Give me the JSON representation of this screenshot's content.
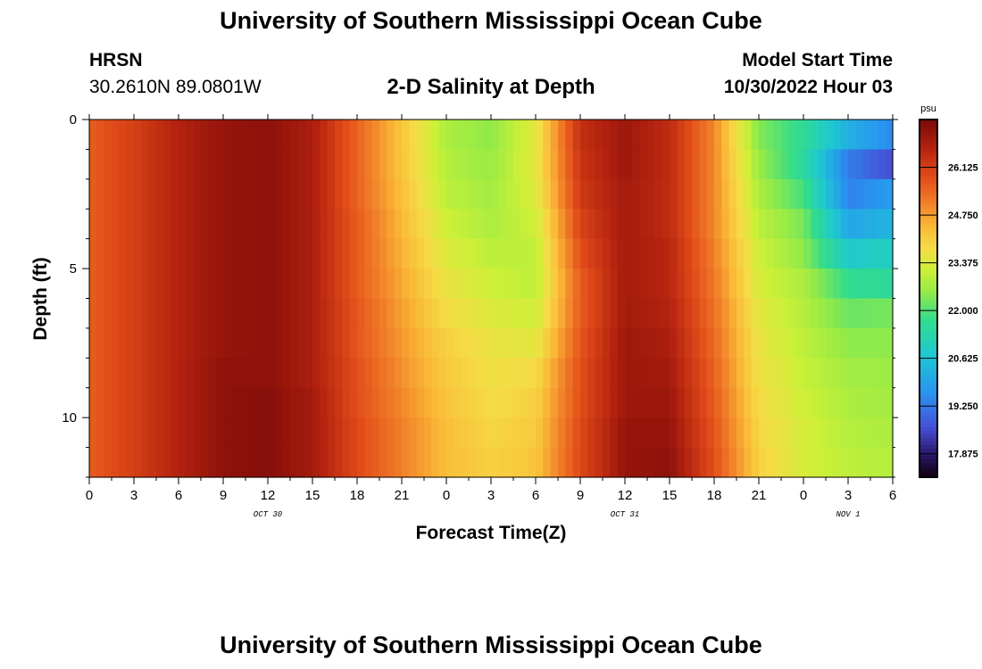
{
  "header": {
    "title": "University of Southern Mississippi Ocean Cube",
    "station": "HRSN",
    "coords": "30.2610N  89.0801W",
    "subtitle": "2-D Salinity at Depth",
    "model_start_label": "Model Start Time",
    "model_start_value": "10/30/2022 Hour 03"
  },
  "footer": {
    "title": "University of Southern Mississippi Ocean Cube"
  },
  "colorbar": {
    "unit": "psu",
    "ticks": [
      "26.125",
      "24.750",
      "23.375",
      "22.000",
      "20.625",
      "19.250",
      "17.875"
    ],
    "min": 17.2,
    "max": 27.5
  },
  "chart_data": {
    "type": "heatmap",
    "title": "2-D Salinity at Depth",
    "xlabel": "Forecast Time(Z)",
    "ylabel": "Depth (ft)",
    "x_tick_labels": [
      "0",
      "3",
      "6",
      "9",
      "12",
      "15",
      "18",
      "21",
      "0",
      "3",
      "6",
      "9",
      "12",
      "15",
      "18",
      "21",
      "0",
      "3",
      "6"
    ],
    "date_labels": [
      {
        "label": "OCT 30",
        "hour": 12
      },
      {
        "label": "OCT 31",
        "hour": 36
      },
      {
        "label": "NOV 1",
        "hour": 51
      }
    ],
    "y_tick_labels": [
      "0",
      "5",
      "10"
    ],
    "x_range_hours": [
      0,
      54
    ],
    "y_range_ft": [
      0,
      12
    ],
    "value_units": "psu",
    "depth_ft": [
      0.5,
      1.5,
      2.5,
      3.5,
      4.5,
      5.5,
      6.5,
      7.5,
      8.5,
      9.5,
      10.5,
      11.5
    ],
    "forecast_hours": [
      0,
      3,
      6,
      9,
      12,
      15,
      18,
      21,
      24,
      27,
      30,
      33,
      36,
      39,
      42,
      45,
      48,
      51,
      54
    ],
    "salinity_profiles": [
      [
        25.6,
        25.6,
        25.6,
        25.6,
        25.6,
        25.6,
        25.6,
        25.6,
        25.6,
        25.6,
        25.6,
        25.6
      ],
      [
        26.1,
        26.1,
        26.1,
        26.1,
        26.1,
        26.1,
        26.1,
        26.1,
        26.1,
        26.1,
        26.1,
        26.1
      ],
      [
        26.7,
        26.7,
        26.7,
        26.7,
        26.7,
        26.7,
        26.7,
        26.7,
        26.7,
        26.7,
        26.7,
        26.7
      ],
      [
        27.1,
        27.1,
        27.1,
        27.1,
        27.1,
        27.1,
        27.1,
        27.1,
        27.2,
        27.2,
        27.2,
        27.2
      ],
      [
        27.2,
        27.2,
        27.2,
        27.2,
        27.2,
        27.2,
        27.2,
        27.2,
        27.2,
        27.3,
        27.3,
        27.3
      ],
      [
        26.8,
        26.8,
        26.8,
        26.8,
        26.8,
        26.8,
        26.8,
        26.8,
        26.8,
        26.9,
        26.9,
        26.9
      ],
      [
        25.5,
        25.5,
        25.5,
        25.6,
        25.6,
        25.6,
        25.7,
        25.7,
        25.8,
        25.8,
        25.9,
        25.9
      ],
      [
        24.2,
        24.2,
        24.3,
        24.4,
        24.5,
        24.6,
        24.7,
        24.8,
        24.9,
        25.0,
        25.1,
        25.1
      ],
      [
        22.8,
        22.9,
        23.0,
        23.2,
        23.4,
        23.6,
        23.8,
        24.0,
        24.1,
        24.2,
        24.3,
        24.3
      ],
      [
        22.5,
        22.6,
        22.7,
        22.8,
        23.0,
        23.2,
        23.4,
        23.6,
        23.7,
        23.8,
        23.9,
        24.0
      ],
      [
        23.5,
        23.5,
        23.4,
        23.2,
        23.0,
        23.0,
        23.2,
        23.5,
        23.8,
        24.0,
        24.1,
        24.2
      ],
      [
        26.4,
        26.3,
        26.2,
        26.0,
        25.8,
        25.6,
        25.6,
        25.7,
        25.8,
        25.8,
        25.9,
        25.9
      ],
      [
        27.0,
        27.0,
        26.9,
        26.9,
        26.9,
        26.9,
        26.9,
        27.0,
        27.0,
        27.0,
        27.1,
        27.1
      ],
      [
        26.5,
        26.5,
        26.5,
        26.5,
        26.6,
        26.6,
        26.7,
        26.8,
        26.9,
        27.0,
        27.1,
        27.2
      ],
      [
        25.0,
        25.0,
        25.0,
        25.0,
        25.1,
        25.2,
        25.3,
        25.4,
        25.5,
        25.6,
        25.7,
        25.8
      ],
      [
        22.4,
        22.6,
        22.8,
        23.0,
        23.2,
        23.3,
        23.5,
        23.6,
        23.7,
        23.8,
        23.9,
        24.0
      ],
      [
        21.6,
        21.5,
        21.9,
        22.3,
        22.5,
        22.8,
        22.9,
        23.0,
        23.1,
        23.2,
        23.3,
        23.3
      ],
      [
        20.2,
        19.3,
        19.4,
        20.0,
        20.8,
        21.7,
        22.2,
        22.5,
        22.7,
        22.8,
        22.9,
        23.0
      ],
      [
        19.5,
        18.6,
        19.8,
        20.3,
        21.0,
        21.5,
        22.3,
        22.5,
        22.6,
        22.7,
        22.8,
        22.9
      ]
    ]
  }
}
